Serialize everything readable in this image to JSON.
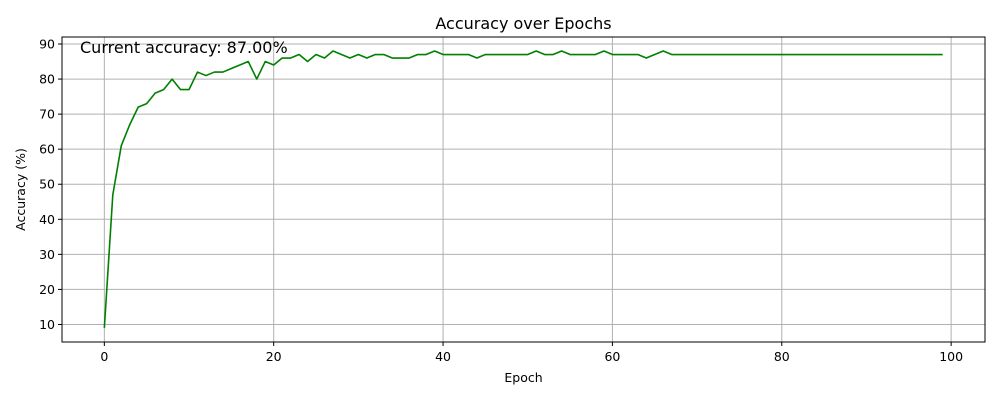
{
  "chart_data": {
    "type": "line",
    "title": "Accuracy over Epochs",
    "xlabel": "Epoch",
    "ylabel": "Accuracy (%)",
    "xlim": [
      -5,
      104
    ],
    "ylim": [
      5,
      92
    ],
    "xticks": [
      0,
      20,
      40,
      60,
      80,
      100
    ],
    "yticks": [
      10,
      20,
      30,
      40,
      50,
      60,
      70,
      80,
      90
    ],
    "grid": true,
    "line_color": "#008000",
    "annotation": "Current accuracy: 87.00%",
    "series": [
      {
        "x": [
          0,
          1,
          2,
          3,
          4,
          5,
          6,
          7,
          8,
          9,
          10,
          11,
          12,
          13,
          14,
          15,
          16,
          17,
          18,
          19,
          20,
          21,
          22,
          23,
          24,
          25,
          26,
          27,
          28,
          29,
          30,
          31,
          32,
          33,
          34,
          35,
          36,
          37,
          38,
          39,
          40,
          41,
          42,
          43,
          44,
          45,
          46,
          47,
          48,
          49,
          50,
          51,
          52,
          53,
          54,
          55,
          56,
          57,
          58,
          59,
          60,
          61,
          62,
          63,
          64,
          65,
          66,
          67,
          68,
          69,
          70,
          71,
          72,
          73,
          74,
          75,
          76,
          77,
          78,
          79,
          80,
          81,
          82,
          83,
          84,
          85,
          86,
          87,
          88,
          89,
          90,
          91,
          92,
          93,
          94,
          95,
          96,
          97,
          98,
          99
        ],
        "values": [
          9,
          47,
          61,
          67,
          72,
          73,
          76,
          77,
          80,
          77,
          77,
          82,
          81,
          82,
          82,
          83,
          84,
          85,
          80,
          85,
          84,
          86,
          86,
          87,
          85,
          87,
          86,
          88,
          87,
          86,
          87,
          86,
          87,
          87,
          86,
          86,
          86,
          87,
          87,
          88,
          87,
          87,
          87,
          87,
          86,
          87,
          87,
          87,
          87,
          87,
          87,
          88,
          87,
          87,
          88,
          87,
          87,
          87,
          87,
          88,
          87,
          87,
          87,
          87,
          86,
          87,
          88,
          87,
          87,
          87,
          87,
          87,
          87,
          87,
          87,
          87,
          87,
          87,
          87,
          87,
          87,
          87,
          87,
          87,
          87,
          87,
          87,
          87,
          87,
          87,
          87,
          87,
          87,
          87,
          87,
          87,
          87,
          87,
          87,
          87
        ]
      }
    ]
  }
}
